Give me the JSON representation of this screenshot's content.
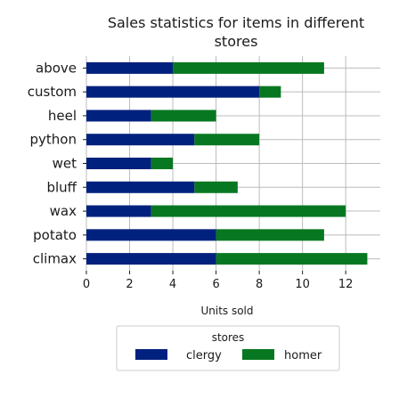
{
  "chart_data": {
    "type": "bar",
    "orientation": "horizontal",
    "stacked": true,
    "title_lines": [
      "Sales statistics for items in different",
      "stores"
    ],
    "xlabel": "Units sold",
    "ylabel": "",
    "categories": [
      "above",
      "custom",
      "heel",
      "python",
      "wet",
      "bluff",
      "wax",
      "potato",
      "climax"
    ],
    "series": [
      {
        "name": "clergy",
        "color": "#00217d",
        "values": [
          4,
          8,
          3,
          5,
          3,
          5,
          3,
          6,
          6
        ]
      },
      {
        "name": "homer",
        "color": "#077821",
        "values": [
          7,
          1,
          3,
          3,
          1,
          2,
          9,
          5,
          7
        ]
      }
    ],
    "xlim": [
      0,
      13.6
    ],
    "xticks": [
      0,
      2,
      4,
      6,
      8,
      10,
      12
    ],
    "xtick_labels": [
      "0",
      "2",
      "4",
      "6",
      "8",
      "10",
      "12"
    ],
    "grid": true,
    "legend": {
      "title": "stores",
      "placement": "bottom-center"
    }
  }
}
